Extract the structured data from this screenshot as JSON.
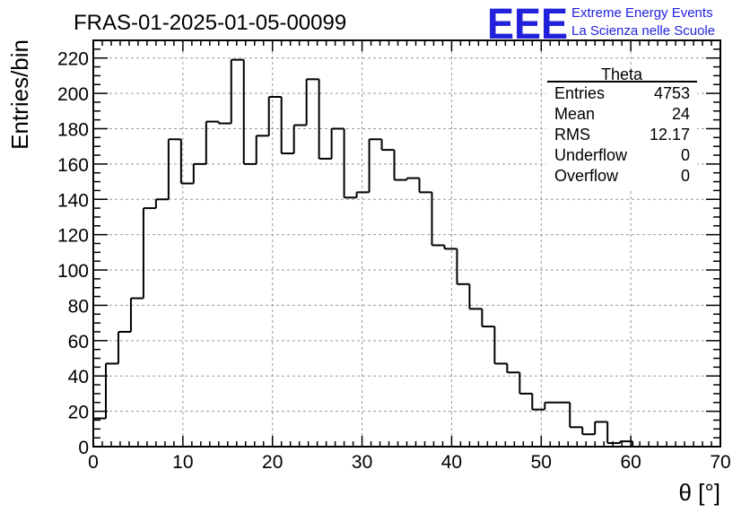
{
  "title": "FRAS-01-2025-01-05-00099",
  "logo": {
    "mark": "EEE",
    "line1": "Extreme Energy Events",
    "line2": "La Scienza nelle Scuole",
    "color": "#2222dd"
  },
  "stats": {
    "name": "Theta",
    "rows": [
      {
        "label": "Entries",
        "value": "4753"
      },
      {
        "label": "Mean",
        "value": "24"
      },
      {
        "label": "RMS",
        "value": "12.17"
      },
      {
        "label": "Underflow",
        "value": "0"
      },
      {
        "label": "Overflow",
        "value": "0"
      }
    ]
  },
  "chart_data": {
    "type": "bar",
    "title": "FRAS-01-2025-01-05-00099",
    "xlabel": "θ [°]",
    "ylabel": "Entries/bin",
    "xlim": [
      0,
      70
    ],
    "ylim": [
      0,
      230
    ],
    "bin_width": 1.4,
    "grid": true,
    "x_ticks": [
      0,
      10,
      20,
      30,
      40,
      50,
      60,
      70
    ],
    "y_ticks": [
      0,
      20,
      40,
      60,
      80,
      100,
      120,
      140,
      160,
      180,
      200,
      220
    ],
    "values": [
      16,
      47,
      65,
      84,
      135,
      140,
      174,
      149,
      160,
      184,
      183,
      219,
      160,
      176,
      198,
      166,
      182,
      208,
      163,
      180,
      141,
      144,
      174,
      168,
      151,
      152,
      144,
      114,
      112,
      92,
      78,
      68,
      47,
      42,
      30,
      21,
      25,
      25,
      11,
      7,
      14,
      2,
      3,
      0,
      0,
      0,
      0,
      0,
      0,
      0
    ]
  }
}
